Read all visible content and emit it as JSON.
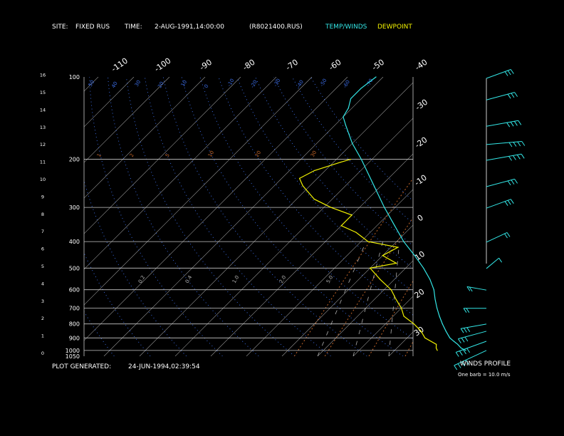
{
  "header": {
    "site_label": "SITE:",
    "site_value": "FIXED RUS",
    "time_label": "TIME:",
    "time_value": "2-AUG-1991,14:00:00",
    "file": "(R8021400.RUS)",
    "temp_legend": "TEMP/WINDS",
    "dew_legend": "DEWPOINT"
  },
  "footer": {
    "generated_label": "PLOT GENERATED:",
    "generated_value": "24-JUN-1994,02:39:54",
    "winds_title": "WINDS PROFILE",
    "winds_note": "One barb = 10.0 m/s"
  },
  "colors": {
    "background": "#000000",
    "isobar": "#c8c8c8",
    "isotherm": "#9a9a9a",
    "dry_adiabat": "#3a6ae0",
    "mixing_ratio": "#c06428",
    "moist_adiabat": "#b0b0b0",
    "temperature": "#33e6e6",
    "dewpoint": "#f0f000",
    "wind": "#33e6e6"
  },
  "chart_data": {
    "type": "line",
    "diagram": "skew-T log-P",
    "pressure_ticks": [
      100,
      200,
      300,
      400,
      500,
      600,
      700,
      800,
      900,
      1000,
      1050
    ],
    "height_ticks_km": [
      0,
      1,
      2,
      3,
      4,
      5,
      6,
      7,
      8,
      9,
      10,
      11,
      12,
      13,
      14,
      15,
      16
    ],
    "top_temperature_labels": [
      "-110",
      "-100",
      "-90",
      "-80",
      "-70",
      "-60",
      "-50",
      "-40"
    ],
    "right_temperature_labels": [
      "-30",
      "-20",
      "-10",
      "0",
      "10",
      "20",
      "30"
    ],
    "dry_adiabat_labels": [
      "50",
      "40",
      "30",
      "20",
      "10",
      "0",
      "-10",
      "-20",
      "-30",
      "-40",
      "-50",
      "-60",
      "-70"
    ],
    "mixing_ratio_labels": [
      "1",
      "2",
      "5",
      "10",
      "20",
      "30"
    ],
    "moist_adiabat_labels": [
      "0.2",
      "0.4",
      "1.0",
      "2.0",
      "5.0"
    ],
    "series": [
      {
        "name": "TEMP/WINDS",
        "points": [
          {
            "p": 1000,
            "t": 30
          },
          {
            "p": 980,
            "t": 28
          },
          {
            "p": 950,
            "t": 26
          },
          {
            "p": 925,
            "t": 24
          },
          {
            "p": 900,
            "t": 22
          },
          {
            "p": 850,
            "t": 19
          },
          {
            "p": 800,
            "t": 16
          },
          {
            "p": 750,
            "t": 13
          },
          {
            "p": 700,
            "t": 10
          },
          {
            "p": 650,
            "t": 7
          },
          {
            "p": 600,
            "t": 4
          },
          {
            "p": 550,
            "t": 0
          },
          {
            "p": 500,
            "t": -5
          },
          {
            "p": 450,
            "t": -11
          },
          {
            "p": 400,
            "t": -18
          },
          {
            "p": 350,
            "t": -25
          },
          {
            "p": 300,
            "t": -33
          },
          {
            "p": 250,
            "t": -42
          },
          {
            "p": 200,
            "t": -53
          },
          {
            "p": 175,
            "t": -60
          },
          {
            "p": 150,
            "t": -67
          },
          {
            "p": 140,
            "t": -70
          },
          {
            "p": 130,
            "t": -71
          },
          {
            "p": 120,
            "t": -73
          },
          {
            "p": 110,
            "t": -73
          },
          {
            "p": 100,
            "t": -72
          }
        ]
      },
      {
        "name": "DEWPOINT",
        "points": [
          {
            "p": 1000,
            "t": 22
          },
          {
            "p": 980,
            "t": 21
          },
          {
            "p": 950,
            "t": 20
          },
          {
            "p": 900,
            "t": 15
          },
          {
            "p": 850,
            "t": 12
          },
          {
            "p": 800,
            "t": 8
          },
          {
            "p": 750,
            "t": 3
          },
          {
            "p": 700,
            "t": 0
          },
          {
            "p": 650,
            "t": -4
          },
          {
            "p": 600,
            "t": -8
          },
          {
            "p": 550,
            "t": -14
          },
          {
            "p": 500,
            "t": -20
          },
          {
            "p": 480,
            "t": -14
          },
          {
            "p": 450,
            "t": -20
          },
          {
            "p": 420,
            "t": -18
          },
          {
            "p": 400,
            "t": -28
          },
          {
            "p": 370,
            "t": -34
          },
          {
            "p": 350,
            "t": -40
          },
          {
            "p": 320,
            "t": -40
          },
          {
            "p": 300,
            "t": -48
          },
          {
            "p": 280,
            "t": -55
          },
          {
            "p": 250,
            "t": -62
          },
          {
            "p": 235,
            "t": -65
          },
          {
            "p": 220,
            "t": -63
          },
          {
            "p": 205,
            "t": -58
          },
          {
            "p": 200,
            "t": -56
          }
        ]
      }
    ],
    "winds": [
      {
        "p": 100,
        "speed_ms": 25,
        "dir_deg": 250
      },
      {
        "p": 120,
        "speed_ms": 30,
        "dir_deg": 255
      },
      {
        "p": 150,
        "speed_ms": 35,
        "dir_deg": 260
      },
      {
        "p": 175,
        "speed_ms": 40,
        "dir_deg": 265
      },
      {
        "p": 200,
        "speed_ms": 40,
        "dir_deg": 260
      },
      {
        "p": 250,
        "speed_ms": 30,
        "dir_deg": 255
      },
      {
        "p": 300,
        "speed_ms": 25,
        "dir_deg": 250
      },
      {
        "p": 400,
        "speed_ms": 20,
        "dir_deg": 245
      },
      {
        "p": 500,
        "speed_ms": 10,
        "dir_deg": 230
      },
      {
        "p": 600,
        "speed_ms": 15,
        "dir_deg": 100
      },
      {
        "p": 700,
        "speed_ms": 20,
        "dir_deg": 90
      },
      {
        "p": 800,
        "speed_ms": 25,
        "dir_deg": 80
      },
      {
        "p": 850,
        "speed_ms": 30,
        "dir_deg": 75
      },
      {
        "p": 925,
        "speed_ms": 35,
        "dir_deg": 70
      },
      {
        "p": 1000,
        "speed_ms": 40,
        "dir_deg": 65
      }
    ]
  }
}
